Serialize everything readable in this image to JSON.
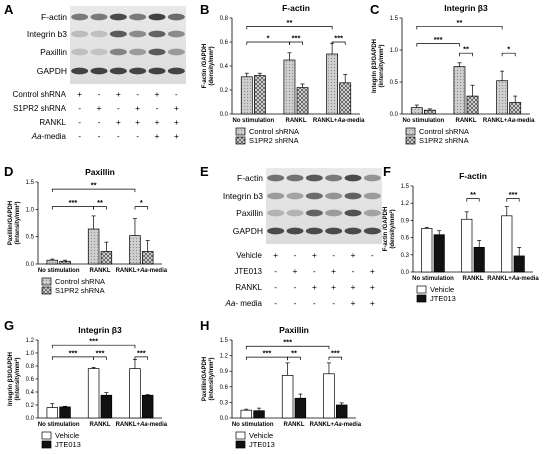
{
  "panel_labels": {
    "A": "A",
    "B": "B",
    "C": "C",
    "D": "D",
    "E": "E",
    "F": "F",
    "G": "G",
    "H": "H"
  },
  "colors": {
    "vehicle": "#ffffff",
    "treated": "#111111",
    "control": "#d4d4d4",
    "knockdown": "#8a8a8a"
  },
  "blot_A": {
    "proteins": [
      "F-actin",
      "Integrin b3",
      "Paxillin",
      "GAPDH"
    ],
    "conditions": [
      {
        "label": "Control shRNA",
        "signs": [
          "+",
          "-",
          "+",
          "-",
          "+",
          "-"
        ]
      },
      {
        "label": "S1PR2 shRNA",
        "signs": [
          "-",
          "+",
          "-",
          "+",
          "-",
          "+"
        ]
      },
      {
        "label": "RANKL",
        "signs": [
          "-",
          "-",
          "+",
          "+",
          "+",
          "+"
        ]
      },
      {
        "label": "Aa-media",
        "italic_prefix": "Aa",
        "suffix": "-media",
        "signs": [
          "-",
          "-",
          "-",
          "-",
          "+",
          "+"
        ]
      }
    ]
  },
  "blot_E": {
    "proteins": [
      "F-actin",
      "Integrin b3",
      "Paxillin",
      "GAPDH"
    ],
    "conditions": [
      {
        "label": "Vehicle",
        "signs": [
          "+",
          "-",
          "+",
          "-",
          "+",
          "-"
        ]
      },
      {
        "label": "JTE013",
        "signs": [
          "-",
          "+",
          "-",
          "+",
          "-",
          "+"
        ]
      },
      {
        "label": "RANKL",
        "signs": [
          "-",
          "-",
          "+",
          "+",
          "+",
          "+"
        ]
      },
      {
        "label": "Aa- media",
        "italic_prefix": "Aa",
        "suffix": "- media",
        "signs": [
          "-",
          "-",
          "-",
          "-",
          "+",
          "+"
        ]
      }
    ]
  },
  "chart_data": [
    {
      "panel": "B",
      "type": "bar",
      "title": "F-actin",
      "ylabel_line1": "F-actin /GAPDH",
      "ylabel_line2": "(density/mm²)",
      "categories": [
        "No stimulation",
        "RANKL",
        "RANKL+Aa-media"
      ],
      "yticks": [
        "0.0",
        "0.2",
        "0.4",
        "0.6",
        "0.8"
      ],
      "ylim": [
        0,
        0.8
      ],
      "series": [
        {
          "name": "Control shRNA",
          "values": [
            0.31,
            0.45,
            0.5
          ],
          "errors": [
            0.03,
            0.06,
            0.09
          ]
        },
        {
          "name": "S1PR2 shRNA",
          "values": [
            0.32,
            0.22,
            0.26
          ],
          "errors": [
            0.02,
            0.03,
            0.07
          ]
        }
      ],
      "brackets": [
        {
          "from": [
            0,
            0
          ],
          "to": [
            2,
            0
          ],
          "level": 0.73,
          "label": "**"
        },
        {
          "from": [
            0,
            0
          ],
          "to": [
            1,
            0
          ],
          "level": 0.6,
          "label": "*"
        },
        {
          "from": [
            1,
            0
          ],
          "to": [
            1,
            1
          ],
          "level": 0.6,
          "label": "***"
        },
        {
          "from": [
            2,
            0
          ],
          "to": [
            2,
            1
          ],
          "level": 0.6,
          "label": "***"
        }
      ]
    },
    {
      "panel": "C",
      "type": "bar",
      "title": "Integrin β3",
      "ylabel_line1": "Integrin β3/GAPDH",
      "ylabel_line2": "(intensity/mm²)",
      "categories": [
        "No stimulation",
        "RANKL",
        "RANKL+Aa-media"
      ],
      "yticks": [
        "0.0",
        "0.5",
        "1.0",
        "1.5"
      ],
      "ylim": [
        0,
        1.5
      ],
      "series": [
        {
          "name": "Control shRNA",
          "values": [
            0.1,
            0.74,
            0.52
          ],
          "errors": [
            0.04,
            0.06,
            0.15
          ]
        },
        {
          "name": "S1PR2 shRNA",
          "values": [
            0.06,
            0.28,
            0.18
          ],
          "errors": [
            0.02,
            0.17,
            0.1
          ]
        }
      ],
      "brackets": [
        {
          "from": [
            0,
            0
          ],
          "to": [
            2,
            0
          ],
          "level": 1.37,
          "label": "**"
        },
        {
          "from": [
            0,
            0
          ],
          "to": [
            1,
            0
          ],
          "level": 1.1,
          "label": "***"
        },
        {
          "from": [
            1,
            0
          ],
          "to": [
            1,
            1
          ],
          "level": 0.95,
          "label": "**"
        },
        {
          "from": [
            2,
            0
          ],
          "to": [
            2,
            1
          ],
          "level": 0.95,
          "label": "*"
        }
      ]
    },
    {
      "panel": "D",
      "type": "bar",
      "title": "Paxillin",
      "ylabel_line1": "Paxillin/GAPDH",
      "ylabel_line2": "(intensity/mm²)",
      "categories": [
        "No stimulation",
        "RANKL",
        "RANKL+Aa-media"
      ],
      "yticks": [
        "0.0",
        "0.5",
        "1.0",
        "1.5"
      ],
      "ylim": [
        0,
        1.5
      ],
      "series": [
        {
          "name": "Control shRNA",
          "values": [
            0.07,
            0.64,
            0.52
          ],
          "errors": [
            0.02,
            0.24,
            0.31
          ]
        },
        {
          "name": "S1PR2 shRNA",
          "values": [
            0.05,
            0.23,
            0.23
          ],
          "errors": [
            0.02,
            0.17,
            0.2
          ]
        }
      ],
      "brackets": [
        {
          "from": [
            0,
            0
          ],
          "to": [
            2,
            0
          ],
          "level": 1.37,
          "label": "**"
        },
        {
          "from": [
            0,
            0
          ],
          "to": [
            1,
            0
          ],
          "level": 1.05,
          "label": "***"
        },
        {
          "from": [
            1,
            0
          ],
          "to": [
            1,
            1
          ],
          "level": 1.05,
          "label": "**"
        },
        {
          "from": [
            2,
            0
          ],
          "to": [
            2,
            1
          ],
          "level": 1.05,
          "label": "*"
        }
      ]
    },
    {
      "panel": "F",
      "type": "bar",
      "title": "F-actin",
      "ylabel_line1": "F-actin /GAPDH",
      "ylabel_line2": "(density/mm²)",
      "categories": [
        "No stimulation",
        "RANKL",
        "RANKL+Aa-media"
      ],
      "yticks": [
        "0.0",
        "0.3",
        "0.6",
        "0.9",
        "1.2",
        "1.5"
      ],
      "ylim": [
        0,
        1.5
      ],
      "series": [
        {
          "name": "Vehicle",
          "values": [
            0.76,
            0.92,
            0.98
          ],
          "errors": [
            0.02,
            0.13,
            0.16
          ]
        },
        {
          "name": "JTE013",
          "values": [
            0.65,
            0.43,
            0.28
          ],
          "errors": [
            0.07,
            0.12,
            0.15
          ]
        }
      ],
      "brackets": [
        {
          "from": [
            1,
            0
          ],
          "to": [
            1,
            1
          ],
          "level": 1.28,
          "label": "**"
        },
        {
          "from": [
            2,
            0
          ],
          "to": [
            2,
            1
          ],
          "level": 1.28,
          "label": "***"
        }
      ]
    },
    {
      "panel": "G",
      "type": "bar",
      "title": "Integrin β3",
      "ylabel_line1": "Integrin β3/GAPDH",
      "ylabel_line2": "(intensity/mm²)",
      "categories": [
        "No stimulation",
        "RANKL",
        "RANKL+Aa-media"
      ],
      "yticks": [
        "0.0",
        "0.2",
        "0.4",
        "0.6",
        "0.8",
        "1.0",
        "1.2"
      ],
      "ylim": [
        0,
        1.2
      ],
      "series": [
        {
          "name": "Vehicle",
          "values": [
            0.16,
            0.76,
            0.76
          ],
          "errors": [
            0.06,
            0.02,
            0.14
          ]
        },
        {
          "name": "JTE013",
          "values": [
            0.17,
            0.35,
            0.35
          ],
          "errors": [
            0.01,
            0.04,
            0.01
          ]
        }
      ],
      "brackets": [
        {
          "from": [
            0,
            0
          ],
          "to": [
            2,
            0
          ],
          "level": 1.12,
          "label": "***"
        },
        {
          "from": [
            0,
            0
          ],
          "to": [
            1,
            0
          ],
          "level": 0.94,
          "label": "***"
        },
        {
          "from": [
            1,
            0
          ],
          "to": [
            1,
            1
          ],
          "level": 0.94,
          "label": "***"
        },
        {
          "from": [
            2,
            0
          ],
          "to": [
            2,
            1
          ],
          "level": 0.94,
          "label": "***"
        }
      ]
    },
    {
      "panel": "H",
      "type": "bar",
      "title": "Paxillin",
      "ylabel_line1": "Paxillin/GAPDH",
      "ylabel_line2": "(intensity/mm²)",
      "categories": [
        "No stimulation",
        "RANKL",
        "RANKL+Aa-media"
      ],
      "yticks": [
        "0.0",
        "0.3",
        "0.6",
        "0.9",
        "1.2",
        "1.5"
      ],
      "ylim": [
        0,
        1.5
      ],
      "series": [
        {
          "name": "Vehicle",
          "values": [
            0.15,
            0.82,
            0.85
          ],
          "errors": [
            0.02,
            0.24,
            0.21
          ]
        },
        {
          "name": "JTE013",
          "values": [
            0.14,
            0.38,
            0.25
          ],
          "errors": [
            0.05,
            0.08,
            0.04
          ]
        }
      ],
      "brackets": [
        {
          "from": [
            0,
            0
          ],
          "to": [
            2,
            0
          ],
          "level": 1.38,
          "label": "***"
        },
        {
          "from": [
            0,
            0
          ],
          "to": [
            1,
            0
          ],
          "level": 1.17,
          "label": "***"
        },
        {
          "from": [
            1,
            0
          ],
          "to": [
            1,
            1
          ],
          "level": 1.17,
          "label": "**"
        },
        {
          "from": [
            2,
            0
          ],
          "to": [
            2,
            1
          ],
          "level": 1.17,
          "label": "***"
        }
      ]
    }
  ]
}
